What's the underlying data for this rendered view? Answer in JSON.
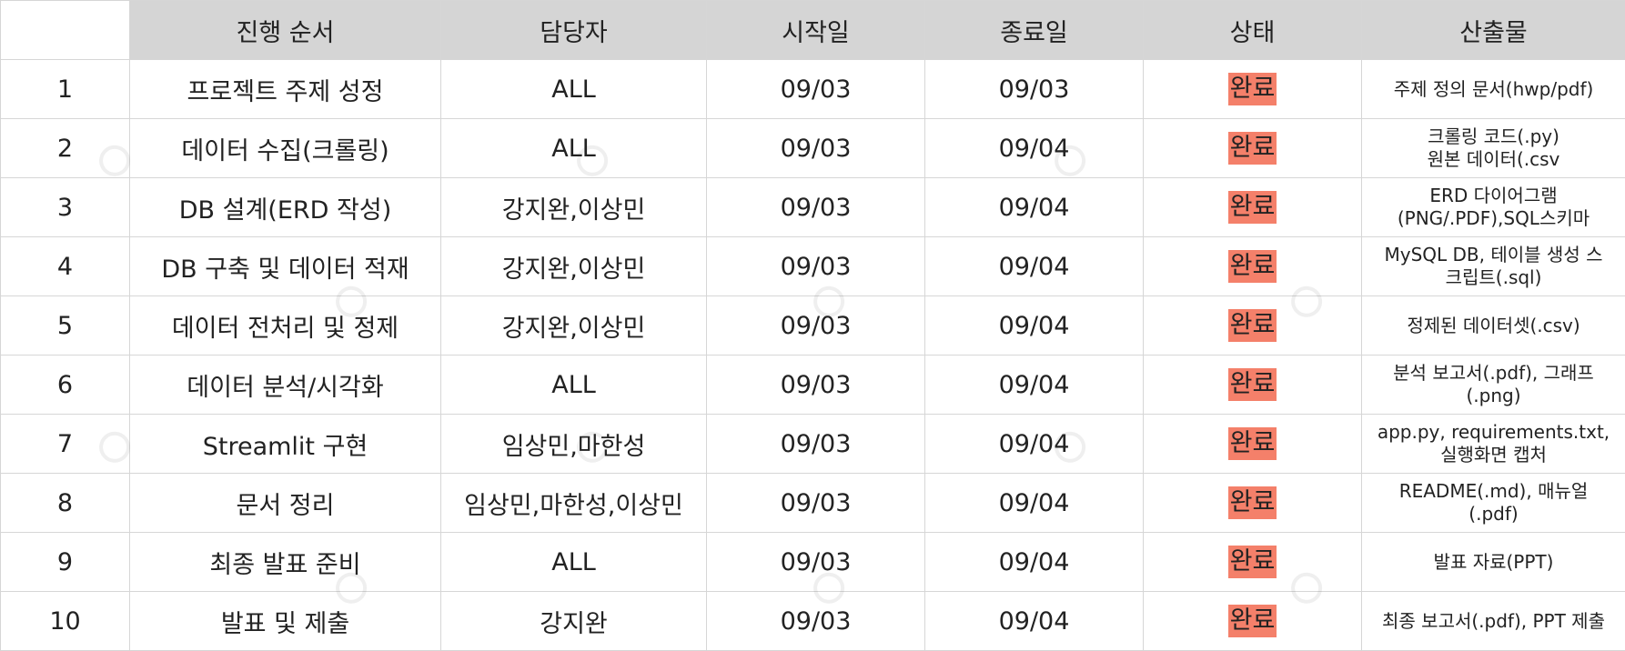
{
  "table": {
    "headers": [
      "",
      "진행 순서",
      "담당자",
      "시작일",
      "종료일",
      "상태",
      "산출물"
    ],
    "rows": [
      {
        "no": "1",
        "task": "프로젝트 주제 성정",
        "owner": "ALL",
        "start": "09/03",
        "end": "09/03",
        "status": "완료",
        "output": [
          "주제 정의 문서(hwp/pdf)"
        ]
      },
      {
        "no": "2",
        "task": "데이터 수집(크롤링)",
        "owner": "ALL",
        "start": "09/03",
        "end": "09/04",
        "status": "완료",
        "output": [
          "크롤링 코드(.py)",
          "원본 데이터(.csv"
        ]
      },
      {
        "no": "3",
        "task": "DB 설계(ERD 작성)",
        "owner": "강지완,이상민",
        "start": "09/03",
        "end": "09/04",
        "status": "완료",
        "output": [
          "ERD 다이어그램",
          "(PNG/.PDF),SQL스키마"
        ]
      },
      {
        "no": "4",
        "task": "DB 구축 및 데이터 적재",
        "owner": "강지완,이상민",
        "start": "09/03",
        "end": "09/04",
        "status": "완료",
        "output": [
          "MySQL DB, 테이블 생성 스",
          "크립트(.sql)"
        ]
      },
      {
        "no": "5",
        "task": "데이터 전처리 및 정제",
        "owner": "강지완,이상민",
        "start": "09/03",
        "end": "09/04",
        "status": "완료",
        "output": [
          "정제된 데이터셋(.csv)"
        ]
      },
      {
        "no": "6",
        "task": "데이터 분석/시각화",
        "owner": "ALL",
        "start": "09/03",
        "end": "09/04",
        "status": "완료",
        "output": [
          "분석 보고서(.pdf), 그래프",
          "(.png)"
        ]
      },
      {
        "no": "7",
        "task": "Streamlit 구현",
        "owner": "임상민,마한성",
        "start": "09/03",
        "end": "09/04",
        "status": "완료",
        "output": [
          "app.py, requirements.txt,",
          "실행화면 캡처"
        ]
      },
      {
        "no": "8",
        "task": "문서 정리",
        "owner": "임상민,마한성,이상민",
        "start": "09/03",
        "end": "09/04",
        "status": "완료",
        "output": [
          "README(.md), 매뉴얼",
          "(.pdf)"
        ]
      },
      {
        "no": "9",
        "task": "최종 발표 준비",
        "owner": "ALL",
        "start": "09/03",
        "end": "09/04",
        "status": "완료",
        "output": [
          "발표 자료(PPT)"
        ]
      },
      {
        "no": "10",
        "task": "발표 및 제출",
        "owner": "강지완",
        "start": "09/03",
        "end": "09/04",
        "status": "완료",
        "output": [
          "최종 보고서(.pdf), PPT 제출"
        ]
      }
    ]
  },
  "style": {
    "header_bg": "#d5d5d5",
    "status_done_bg": "#f4806a",
    "grid_line": "#d6d6d6"
  }
}
